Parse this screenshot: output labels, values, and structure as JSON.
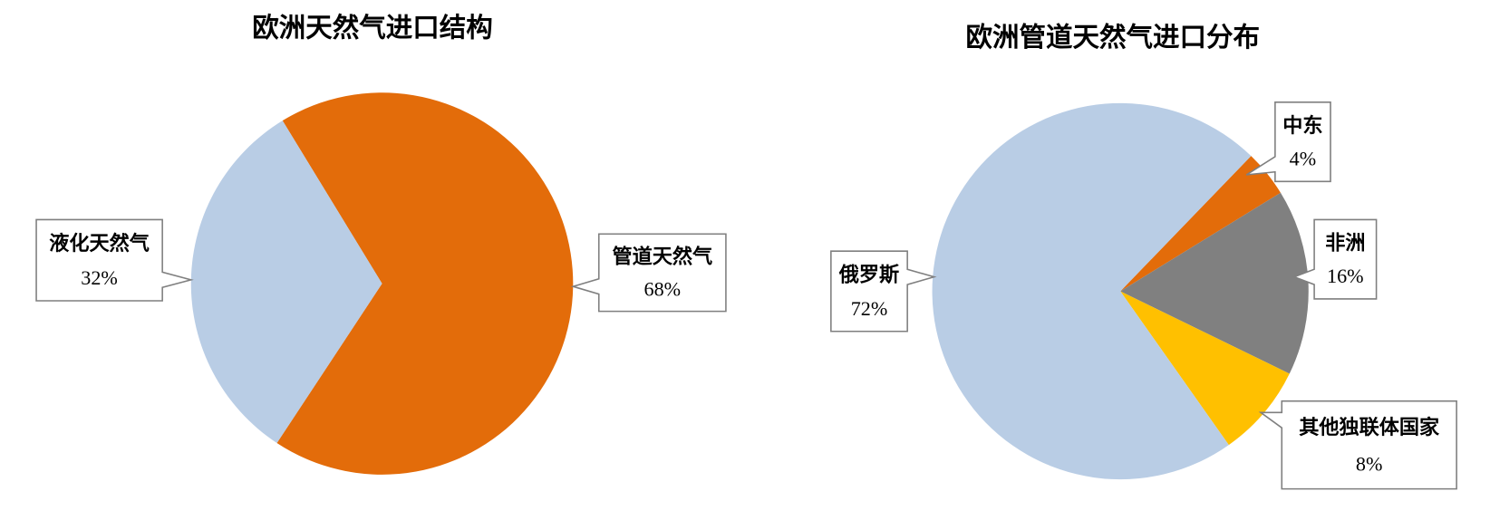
{
  "chart_data": [
    {
      "type": "pie",
      "title": "欧洲天然气进口结构",
      "categories": [
        "管道天然气",
        "液化天然气"
      ],
      "values": [
        68,
        32
      ],
      "value_labels": [
        "68%",
        "32%"
      ],
      "colors": [
        "#e36c0a",
        "#b9cde5"
      ]
    },
    {
      "type": "pie",
      "title": "欧洲管道天然气进口分布",
      "categories": [
        "中东",
        "非洲",
        "其他独联体国家",
        "俄罗斯"
      ],
      "values": [
        4,
        16,
        8,
        72
      ],
      "value_labels": [
        "4%",
        "16%",
        "8%",
        "72%"
      ],
      "colors": [
        "#e36c0a",
        "#808080",
        "#ffc000",
        "#b9cde5"
      ]
    }
  ]
}
